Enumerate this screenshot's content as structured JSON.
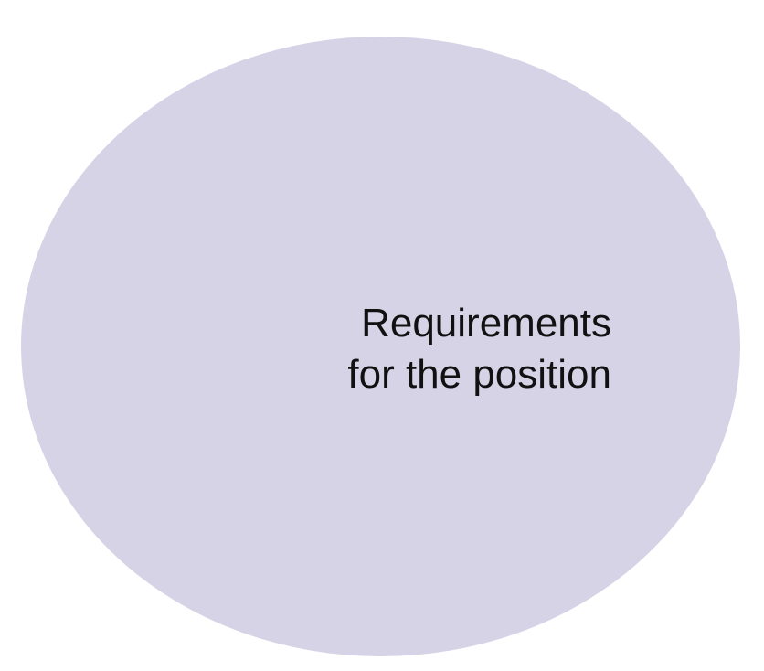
{
  "diagram": {
    "shape_color": "#d6d3e7",
    "label_lines": [
      "Requirements",
      "for the position"
    ]
  }
}
